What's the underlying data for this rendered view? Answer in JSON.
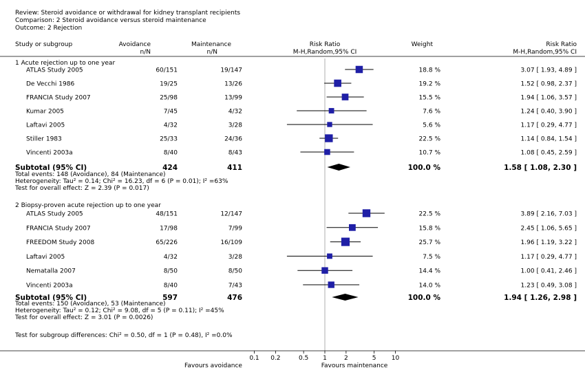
{
  "header": {
    "review": "Review:  Steroid avoidance or withdrawal for kidney transplant recipients",
    "comparison": "Comparison:  2 Steroid avoidance versus steroid maintenance",
    "outcome": "Outcome:  2 Rejection"
  },
  "columns": {
    "study": "Study or subgroup",
    "avoid": "Avoidance",
    "avoid_sub": "n/N",
    "maint": "Maintenance",
    "maint_sub": "n/N",
    "rr": "Risk Ratio",
    "rr_sub": "M-H,Random,95% CI",
    "weight": "Weight",
    "rr2": "Risk Ratio",
    "rr2_sub": "M-H,Random,95% CI"
  },
  "footer": {
    "subgroup_diff": "Test for subgroup differences: Chi² = 0.50, df = 1 (P = 0.48), I² =0.0%",
    "favours_left": "Favours avoidance",
    "favours_right": "Favours maintenance"
  },
  "chart_data": {
    "type": "forest",
    "x_scale": "log",
    "x_ticks": [
      0.1,
      0.2,
      0.5,
      1,
      2,
      5,
      10
    ],
    "x_tick_labels": [
      "0.1",
      "0.2",
      "0.5",
      "1",
      "2",
      "5",
      "10"
    ],
    "null_line": 1,
    "groups": [
      {
        "title": "1 Acute rejection up to one year",
        "studies": [
          {
            "name": "ATLAS Study 2005",
            "avoid": "60/151",
            "maint": "19/147",
            "weight": "18.8 %",
            "rr": 3.07,
            "lo": 1.93,
            "hi": 4.89,
            "ci_text": "3.07 [ 1.93, 4.89 ]"
          },
          {
            "name": "De Vecchi 1986",
            "avoid": "19/25",
            "maint": "13/26",
            "weight": "19.2 %",
            "rr": 1.52,
            "lo": 0.98,
            "hi": 2.37,
            "ci_text": "1.52 [ 0.98, 2.37 ]"
          },
          {
            "name": "FRANCIA Study 2007",
            "avoid": "25/98",
            "maint": "13/99",
            "weight": "15.5 %",
            "rr": 1.94,
            "lo": 1.06,
            "hi": 3.57,
            "ci_text": "1.94 [ 1.06, 3.57 ]"
          },
          {
            "name": "Kumar 2005",
            "avoid": "7/45",
            "maint": "4/32",
            "weight": "7.6 %",
            "rr": 1.24,
            "lo": 0.4,
            "hi": 3.9,
            "ci_text": "1.24 [ 0.40, 3.90 ]"
          },
          {
            "name": "Laftavi 2005",
            "avoid": "4/32",
            "maint": "3/28",
            "weight": "5.6 %",
            "rr": 1.17,
            "lo": 0.29,
            "hi": 4.77,
            "ci_text": "1.17 [ 0.29, 4.77 ]"
          },
          {
            "name": "Stiller 1983",
            "avoid": "25/33",
            "maint": "24/36",
            "weight": "22.5 %",
            "rr": 1.14,
            "lo": 0.84,
            "hi": 1.54,
            "ci_text": "1.14 [ 0.84, 1.54 ]"
          },
          {
            "name": "Vincenti 2003a",
            "avoid": "8/40",
            "maint": "8/43",
            "weight": "10.7 %",
            "rr": 1.08,
            "lo": 0.45,
            "hi": 2.59,
            "ci_text": "1.08 [ 0.45, 2.59 ]"
          }
        ],
        "subtotal": {
          "label": "Subtotal (95% CI)",
          "avoid": "424",
          "maint": "411",
          "weight": "100.0 %",
          "rr": 1.58,
          "lo": 1.08,
          "hi": 2.3,
          "ci_text": "1.58 [ 1.08, 2.30 ]"
        },
        "notes": [
          "Total events: 148 (Avoidance), 84 (Maintenance)",
          "Heterogeneity: Tau² = 0.14; Chi² = 16.23, df = 6 (P = 0.01); I² =63%",
          "Test for overall effect: Z = 2.39 (P = 0.017)"
        ]
      },
      {
        "title": "2 Biopsy-proven acute rejection up to one year",
        "studies": [
          {
            "name": "ATLAS Study 2005",
            "avoid": "48/151",
            "maint": "12/147",
            "weight": "22.5 %",
            "rr": 3.89,
            "lo": 2.16,
            "hi": 7.03,
            "ci_text": "3.89 [ 2.16, 7.03 ]"
          },
          {
            "name": "FRANCIA Study 2007",
            "avoid": "17/98",
            "maint": "7/99",
            "weight": "15.8 %",
            "rr": 2.45,
            "lo": 1.06,
            "hi": 5.65,
            "ci_text": "2.45 [ 1.06, 5.65 ]"
          },
          {
            "name": "FREEDOM Study 2008",
            "avoid": "65/226",
            "maint": "16/109",
            "weight": "25.7 %",
            "rr": 1.96,
            "lo": 1.19,
            "hi": 3.22,
            "ci_text": "1.96 [ 1.19, 3.22 ]"
          },
          {
            "name": "Laftavi 2005",
            "avoid": "4/32",
            "maint": "3/28",
            "weight": "7.5 %",
            "rr": 1.17,
            "lo": 0.29,
            "hi": 4.77,
            "ci_text": "1.17 [ 0.29, 4.77 ]"
          },
          {
            "name": "Nematalla 2007",
            "avoid": "8/50",
            "maint": "8/50",
            "weight": "14.4 %",
            "rr": 1.0,
            "lo": 0.41,
            "hi": 2.46,
            "ci_text": "1.00 [ 0.41, 2.46 ]"
          },
          {
            "name": "Vincenti 2003a",
            "avoid": "8/40",
            "maint": "7/43",
            "weight": "14.0 %",
            "rr": 1.23,
            "lo": 0.49,
            "hi": 3.08,
            "ci_text": "1.23 [ 0.49, 3.08 ]"
          }
        ],
        "subtotal": {
          "label": "Subtotal (95% CI)",
          "avoid": "597",
          "maint": "476",
          "weight": "100.0 %",
          "rr": 1.94,
          "lo": 1.26,
          "hi": 2.98,
          "ci_text": "1.94 [ 1.26, 2.98 ]"
        },
        "notes": [
          "Total events: 150 (Avoidance), 53 (Maintenance)",
          "Heterogeneity: Tau² = 0.12; Chi² = 9.08, df = 5 (P = 0.11); I² =45%",
          "Test for overall effect: Z = 3.01 (P = 0.0026)"
        ]
      }
    ]
  }
}
